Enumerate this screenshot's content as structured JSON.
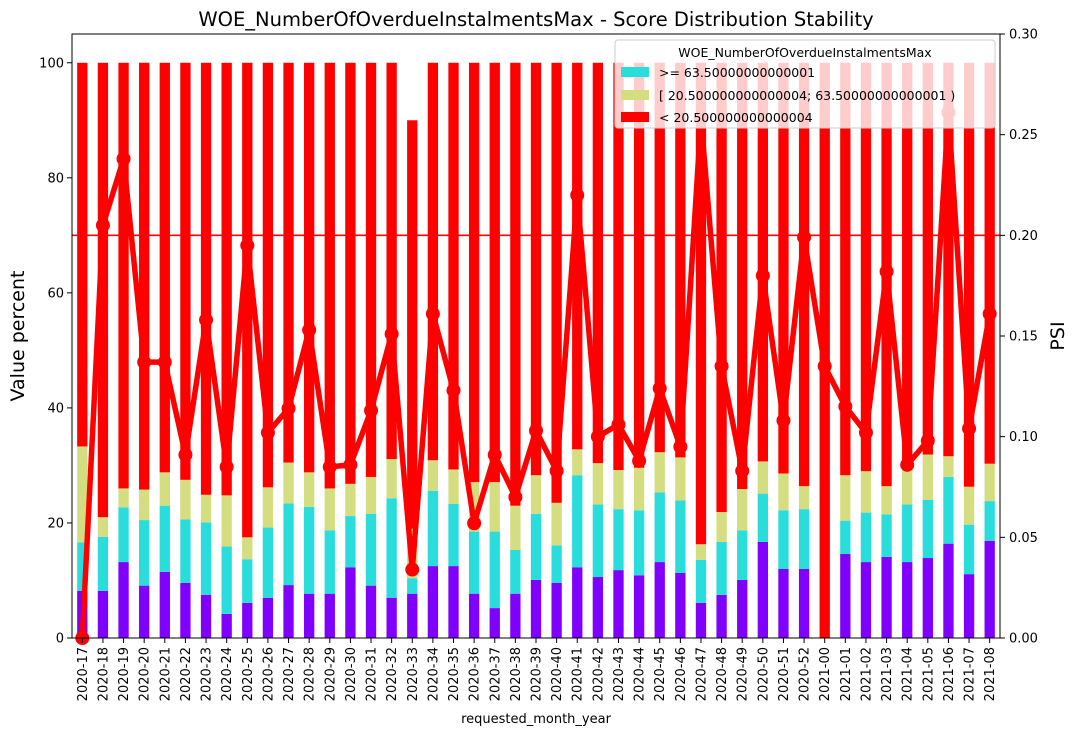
{
  "chart_data": {
    "type": "bar",
    "title": "WOE_NumberOfOverdueInstalmentsMax  - Score Distribution Stability",
    "xlabel": "requested_month_year",
    "ylabel": "Value percent",
    "ylabel_right": "PSI",
    "ylim": [
      0,
      105
    ],
    "ylim_right": [
      0,
      0.3
    ],
    "yticks": [
      "0",
      "20",
      "40",
      "60",
      "80",
      "100"
    ],
    "yticks_right": [
      "0.00",
      "0.05",
      "0.10",
      "0.15",
      "0.20",
      "0.25",
      "0.30"
    ],
    "threshold": 70,
    "legend": {
      "title": "WOE_NumberOfOverdueInstalmentsMax",
      "placement": "top-right",
      "entries": [
        {
          "label": ">= 63.50000000000001",
          "color": "#2adddd"
        },
        {
          "label": "[ 20.500000000000004; 63.50000000000001 )",
          "color": "#d4dd80"
        },
        {
          "label": "< 20.500000000000004",
          "color": "#ff0000"
        }
      ]
    },
    "categories": [
      "2020-17",
      "2020-18",
      "2020-19",
      "2020-20",
      "2020-21",
      "2020-22",
      "2020-23",
      "2020-24",
      "2020-25",
      "2020-26",
      "2020-27",
      "2020-28",
      "2020-29",
      "2020-30",
      "2020-31",
      "2020-32",
      "2020-33",
      "2020-34",
      "2020-35",
      "2020-36",
      "2020-37",
      "2020-38",
      "2020-39",
      "2020-40",
      "2020-41",
      "2020-42",
      "2020-43",
      "2020-44",
      "2020-45",
      "2020-46",
      "2020-47",
      "2020-48",
      "2020-49",
      "2020-50",
      "2020-51",
      "2020-52",
      "2021-00",
      "2021-01",
      "2021-02",
      "2021-03",
      "2021-04",
      "2021-05",
      "2021-06",
      "2021-07",
      "2021-08"
    ],
    "series": [
      {
        "color": "#8000ff",
        "values": [
          8.2,
          8.2,
          13.2,
          9.1,
          11.5,
          9.6,
          7.5,
          4.2,
          6.1,
          7.0,
          9.2,
          7.7,
          7.7,
          12.3,
          9.1,
          7.0,
          7.7,
          12.5,
          12.5,
          7.7,
          5.2,
          7.7,
          10.1,
          9.6,
          12.3,
          10.6,
          11.8,
          10.9,
          13.2,
          11.3,
          6.1,
          7.5,
          10.1,
          16.7,
          12.0,
          12.0,
          0,
          14.6,
          13.2,
          14.1,
          13.2,
          13.9,
          16.4,
          11.1,
          16.9
        ]
      },
      {
        "name": ">= 63.50000000000001",
        "color": "#2adddd",
        "values": [
          8.4,
          9.4,
          9.5,
          11.4,
          11.5,
          11.0,
          12.6,
          11.7,
          7.6,
          12.2,
          14.2,
          15.1,
          11.0,
          8.9,
          12.5,
          17.3,
          2.7,
          13.1,
          10.8,
          10.8,
          13.3,
          7.6,
          11.5,
          6.5,
          16.0,
          12.6,
          10.6,
          11.3,
          12.1,
          12.6,
          7.5,
          9.2,
          8.6,
          8.4,
          10.2,
          10.4,
          0,
          5.8,
          8.6,
          7.4,
          10.0,
          10.1,
          11.6,
          8.6,
          6.9
        ]
      },
      {
        "name": "[ 20.500000000000004; 63.50000000000001 )",
        "color": "#d4dd80",
        "values": [
          16.7,
          3.4,
          3.3,
          5.3,
          5.8,
          6.9,
          4.8,
          8.9,
          3.8,
          7.0,
          7.1,
          6.0,
          7.3,
          5.6,
          6.4,
          6.8,
          8.6,
          5.3,
          6.0,
          8.6,
          8.6,
          7.7,
          6.7,
          7.4,
          4.5,
          7.2,
          6.8,
          7.4,
          7.0,
          7.5,
          2.7,
          5.2,
          7.2,
          5.6,
          6.4,
          4.0,
          0,
          7.9,
          7.2,
          4.9,
          6.7,
          7.9,
          3.6,
          6.6,
          6.5
        ]
      },
      {
        "name": "< 20.500000000000004",
        "color": "#ff0000",
        "values": [
          66.7,
          79.0,
          74.0,
          74.2,
          71.2,
          72.5,
          75.1,
          75.2,
          82.5,
          73.8,
          69.5,
          71.2,
          74.0,
          73.2,
          72.0,
          68.9,
          71.0,
          69.1,
          70.7,
          72.9,
          72.9,
          77.0,
          71.7,
          76.5,
          67.2,
          69.6,
          70.8,
          70.4,
          67.7,
          68.6,
          83.7,
          78.1,
          74.1,
          69.3,
          71.4,
          73.6,
          100,
          71.7,
          71.0,
          73.6,
          70.1,
          68.1,
          68.4,
          73.7,
          69.7
        ]
      }
    ],
    "psi": {
      "color": "#ff0000",
      "values": [
        0.0,
        0.205,
        0.238,
        0.137,
        0.137,
        0.091,
        0.158,
        0.085,
        0.195,
        0.102,
        0.114,
        0.153,
        0.085,
        0.086,
        0.113,
        0.151,
        0.034,
        0.161,
        0.123,
        0.057,
        0.091,
        0.07,
        0.103,
        0.083,
        0.22,
        0.1,
        0.106,
        0.088,
        0.124,
        0.095,
        0.258,
        0.135,
        0.083,
        0.18,
        0.108,
        0.199,
        0.135,
        0.115,
        0.102,
        0.182,
        0.086,
        0.098,
        0.261,
        0.104,
        0.161
      ]
    },
    "grid": false
  }
}
